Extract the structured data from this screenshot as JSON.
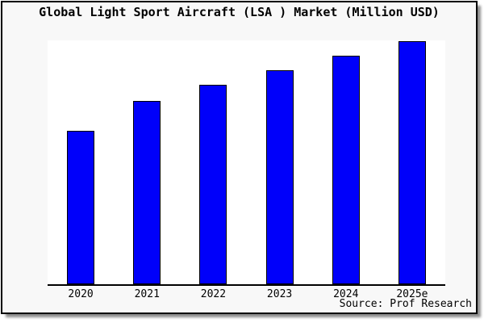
{
  "window": {
    "background_color": "#f8f8f8",
    "border_color": "#000000"
  },
  "chart_data": {
    "type": "bar",
    "title": "Global Light Sport Aircraft (LSA ) Market (Million USD)",
    "categories": [
      "2020",
      "2021",
      "2022",
      "2023",
      "2024",
      "2025e"
    ],
    "values": [
      190,
      227,
      247,
      265,
      283,
      301
    ],
    "ylim": [
      0,
      302
    ],
    "xlabel": "",
    "ylabel": "",
    "grid": "off",
    "legend": "none",
    "y_axis_ticks_visible": false,
    "bar_color": "#0000fa",
    "bar_border_color": "#000000",
    "plot_background": "#ffffff",
    "axis_line_color": "#000000",
    "source": "Source: Prof Research"
  }
}
